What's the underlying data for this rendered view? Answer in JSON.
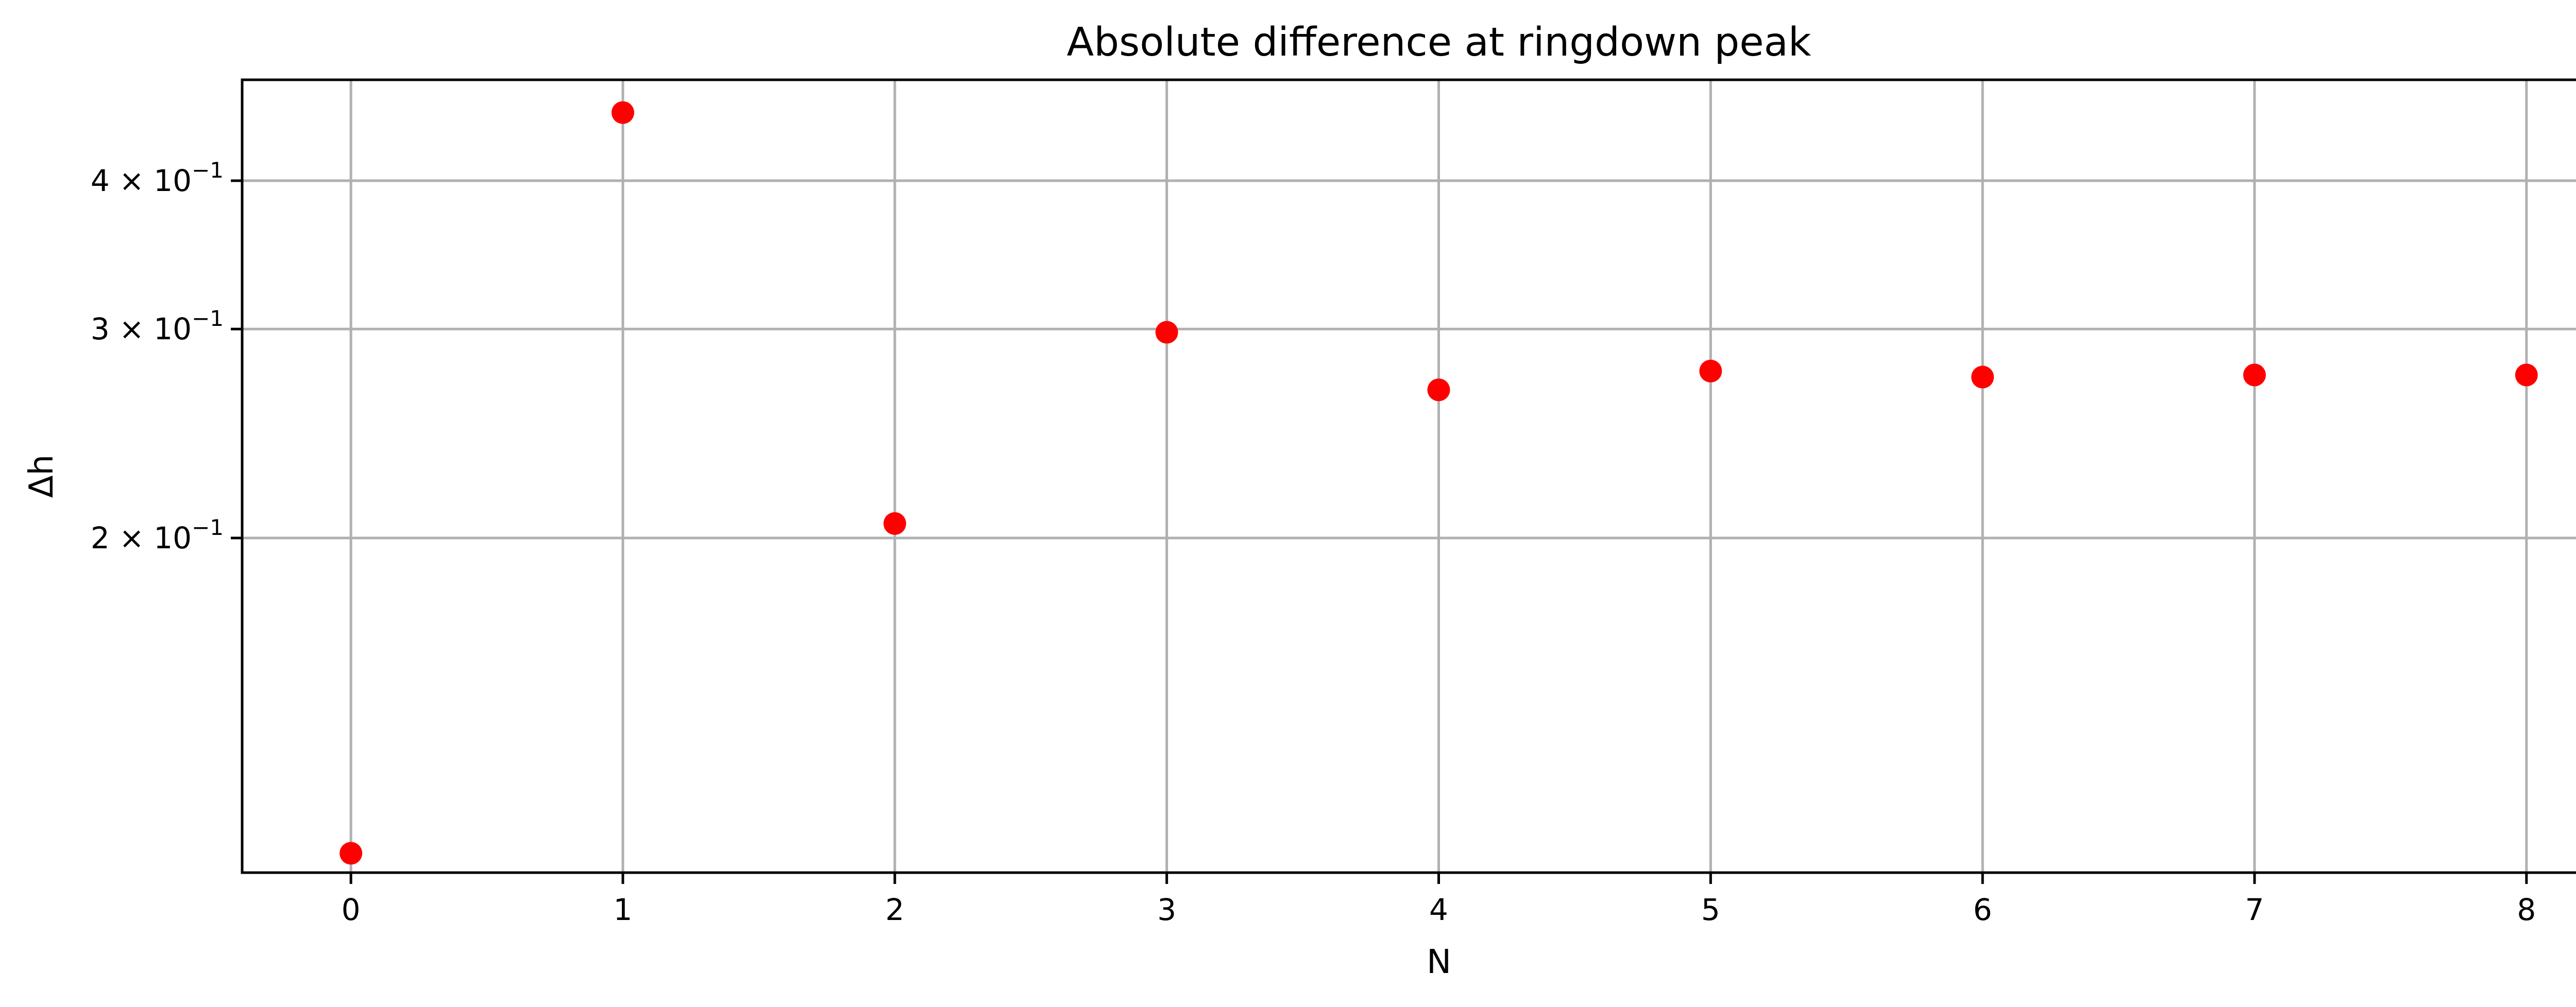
{
  "chart_data": {
    "type": "scatter",
    "title": "Absolute difference at ringdown peak",
    "xlabel": "N",
    "ylabel": "Δh",
    "x": [
      0,
      1,
      2,
      3,
      4,
      5,
      6,
      7,
      8
    ],
    "y": [
      0.1085,
      0.4565,
      0.2057,
      0.2981,
      0.2666,
      0.2765,
      0.2733,
      0.2744,
      0.2744
    ],
    "xlim": [
      -0.4,
      8.4
    ],
    "ylim": [
      0.1045,
      0.4865
    ],
    "yscale": "log",
    "xticks": [
      0,
      1,
      2,
      3,
      4,
      5,
      6,
      7,
      8
    ],
    "xtick_labels": [
      "0",
      "1",
      "2",
      "3",
      "4",
      "5",
      "6",
      "7",
      "8"
    ],
    "yticks": [
      {
        "value": 0.2,
        "mantissa": "2",
        "times": "×",
        "base": "10",
        "exp": "−1"
      },
      {
        "value": 0.3,
        "mantissa": "3",
        "times": "×",
        "base": "10",
        "exp": "−1"
      },
      {
        "value": 0.4,
        "mantissa": "4",
        "times": "×",
        "base": "10",
        "exp": "−1"
      }
    ],
    "grid": true,
    "marker_color": "#ff0000",
    "grid_color": "#b0b0b0"
  }
}
